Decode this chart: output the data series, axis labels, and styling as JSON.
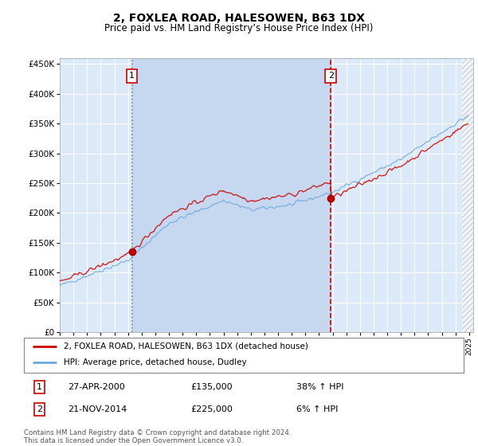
{
  "title": "2, FOXLEA ROAD, HALESOWEN, B63 1DX",
  "subtitle": "Price paid vs. HM Land Registry’s House Price Index (HPI)",
  "red_line_label": "2, FOXLEA ROAD, HALESOWEN, B63 1DX (detached house)",
  "blue_line_label": "HPI: Average price, detached house, Dudley",
  "annotation1_date": "27-APR-2000",
  "annotation1_price": "£135,000",
  "annotation1_pct": "38% ↑ HPI",
  "annotation2_date": "21-NOV-2014",
  "annotation2_price": "£225,000",
  "annotation2_pct": "6% ↑ HPI",
  "footer": "Contains HM Land Registry data © Crown copyright and database right 2024.\nThis data is licensed under the Open Government Licence v3.0.",
  "plot_bg_color": "#dce9f8",
  "shade_color": "#c5d8f0",
  "ylim": [
    0,
    460000
  ],
  "yticks": [
    0,
    50000,
    100000,
    150000,
    200000,
    250000,
    300000,
    350000,
    400000,
    450000
  ],
  "x_start_year": 1995,
  "x_end_year": 2025,
  "sale1_year": 2000.29,
  "sale1_price": 135000,
  "sale2_year": 2014.87,
  "sale2_price": 225000
}
